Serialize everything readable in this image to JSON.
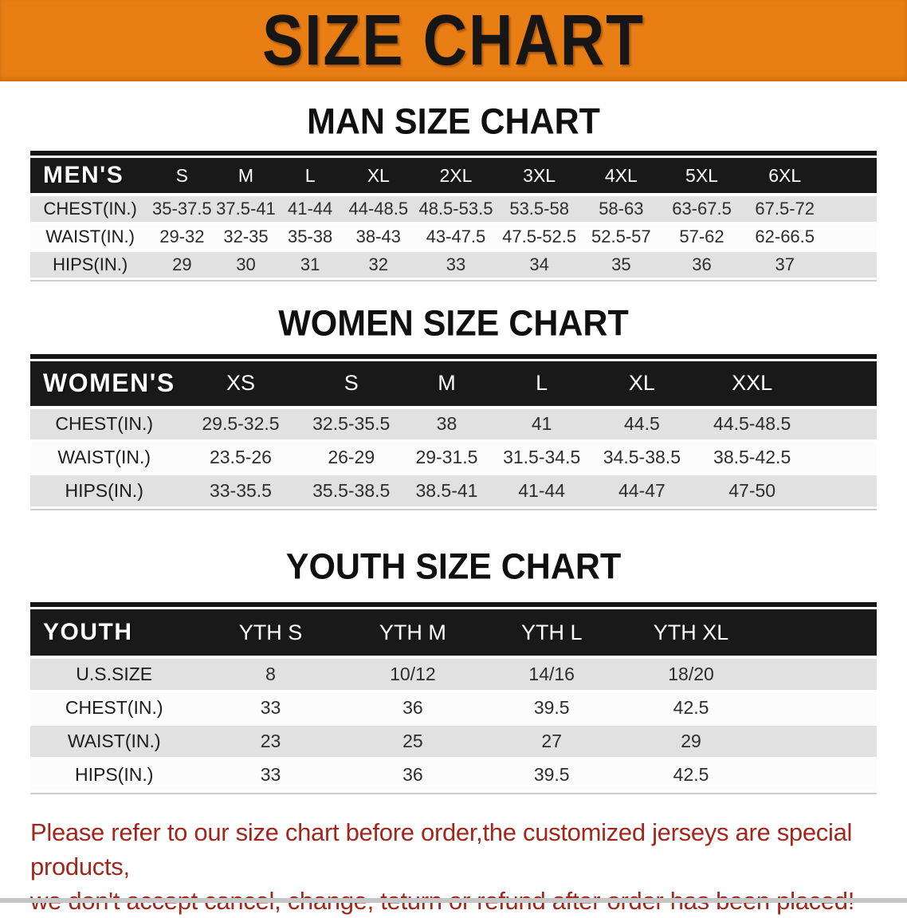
{
  "banner": {
    "title": "SIZE CHART"
  },
  "colors": {
    "banner_bg": "#E87E14",
    "banner_text": "#161616",
    "table_header_bg": "#191919",
    "row_alt_bg": "#E1E1E1",
    "row_bg": "#FCFCFC",
    "disclaimer_red": "#A3261C",
    "bottom_bar": "#C6C6C6"
  },
  "sections": [
    {
      "heading": "MAN SIZE CHART",
      "corner": "MEN'S",
      "columns": [
        "S",
        "M",
        "L",
        "XL",
        "2XL",
        "3XL",
        "4XL",
        "5XL",
        "6XL"
      ],
      "rows": [
        {
          "label": "CHEST(IN.)",
          "values": [
            "35-37.5",
            "37.5-41",
            "41-44",
            "44-48.5",
            "48.5-53.5",
            "53.5-58",
            "58-63",
            "63-67.5",
            "67.5-72"
          ]
        },
        {
          "label": "WAIST(IN.)",
          "values": [
            "29-32",
            "32-35",
            "35-38",
            "38-43",
            "43-47.5",
            "47.5-52.5",
            "52.5-57",
            "57-62",
            "62-66.5"
          ]
        },
        {
          "label": "HIPS(IN.)",
          "values": [
            "29",
            "30",
            "31",
            "32",
            "33",
            "34",
            "35",
            "36",
            "37"
          ]
        }
      ]
    },
    {
      "heading": "WOMEN SIZE CHART",
      "corner": "WOMEN'S",
      "columns": [
        "XS",
        "S",
        "M",
        "L",
        "XL",
        "XXL"
      ],
      "rows": [
        {
          "label": "CHEST(IN.)",
          "values": [
            "29.5-32.5",
            "32.5-35.5",
            "38",
            "41",
            "44.5",
            "44.5-48.5"
          ]
        },
        {
          "label": "WAIST(IN.)",
          "values": [
            "23.5-26",
            "26-29",
            "29-31.5",
            "31.5-34.5",
            "34.5-38.5",
            "38.5-42.5"
          ]
        },
        {
          "label": "HIPS(IN.)",
          "values": [
            "33-35.5",
            "35.5-38.5",
            "38.5-41",
            "41-44",
            "44-47",
            "47-50"
          ]
        }
      ]
    },
    {
      "heading": "YOUTH SIZE CHART",
      "corner": "YOUTH",
      "columns": [
        "YTH S",
        "YTH M",
        "YTH L",
        "YTH XL"
      ],
      "rows": [
        {
          "label": "U.S.SIZE",
          "values": [
            "8",
            "10/12",
            "14/16",
            "18/20"
          ]
        },
        {
          "label": "CHEST(IN.)",
          "values": [
            "33",
            "36",
            "39.5",
            "42.5"
          ]
        },
        {
          "label": "WAIST(IN.)",
          "values": [
            "23",
            "25",
            "27",
            "29"
          ]
        },
        {
          "label": "HIPS(IN.)",
          "values": [
            "33",
            "36",
            "39.5",
            "42.5"
          ]
        }
      ]
    }
  ],
  "disclaimer": {
    "line1": "Please refer to our size chart before order,the customized jerseys are special products,",
    "line2": "we don't accept cancel, change, teturn or refund after order has been placed!"
  },
  "chart_data": [
    {
      "type": "table",
      "title": "MAN SIZE CHART",
      "columns": [
        "MEN'S",
        "S",
        "M",
        "L",
        "XL",
        "2XL",
        "3XL",
        "4XL",
        "5XL",
        "6XL"
      ],
      "rows": [
        [
          "CHEST(IN.)",
          "35-37.5",
          "37.5-41",
          "41-44",
          "44-48.5",
          "48.5-53.5",
          "53.5-58",
          "58-63",
          "63-67.5",
          "67.5-72"
        ],
        [
          "WAIST(IN.)",
          "29-32",
          "32-35",
          "35-38",
          "38-43",
          "43-47.5",
          "47.5-52.5",
          "52.5-57",
          "57-62",
          "62-66.5"
        ],
        [
          "HIPS(IN.)",
          "29",
          "30",
          "31",
          "32",
          "33",
          "34",
          "35",
          "36",
          "37"
        ]
      ]
    },
    {
      "type": "table",
      "title": "WOMEN SIZE CHART",
      "columns": [
        "WOMEN'S",
        "XS",
        "S",
        "M",
        "L",
        "XL",
        "XXL"
      ],
      "rows": [
        [
          "CHEST(IN.)",
          "29.5-32.5",
          "32.5-35.5",
          "38",
          "41",
          "44.5",
          "44.5-48.5"
        ],
        [
          "WAIST(IN.)",
          "23.5-26",
          "26-29",
          "29-31.5",
          "31.5-34.5",
          "34.5-38.5",
          "38.5-42.5"
        ],
        [
          "HIPS(IN.)",
          "33-35.5",
          "35.5-38.5",
          "38.5-41",
          "41-44",
          "44-47",
          "47-50"
        ]
      ]
    },
    {
      "type": "table",
      "title": "YOUTH SIZE CHART",
      "columns": [
        "YOUTH",
        "YTH S",
        "YTH M",
        "YTH L",
        "YTH XL"
      ],
      "rows": [
        [
          "U.S.SIZE",
          "8",
          "10/12",
          "14/16",
          "18/20"
        ],
        [
          "CHEST(IN.)",
          "33",
          "36",
          "39.5",
          "42.5"
        ],
        [
          "WAIST(IN.)",
          "23",
          "25",
          "27",
          "29"
        ],
        [
          "HIPS(IN.)",
          "33",
          "36",
          "39.5",
          "42.5"
        ]
      ]
    }
  ]
}
